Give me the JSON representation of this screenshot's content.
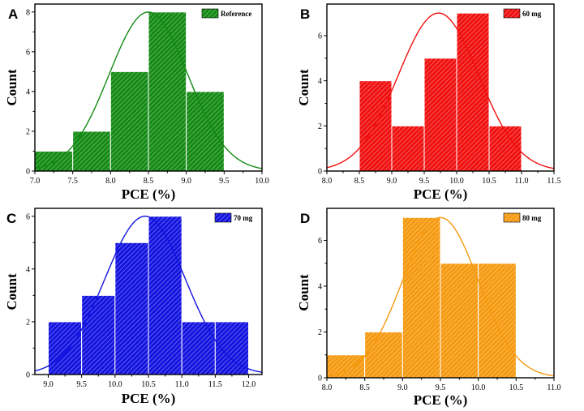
{
  "chart_data": [
    {
      "type": "bar",
      "panel_label": "A",
      "legend": "Reference",
      "color": "#138a13",
      "xlabel": "PCE (%)",
      "ylabel": "Count",
      "xlim": [
        7.0,
        10.0
      ],
      "ylim": [
        0,
        8.4
      ],
      "xticks": [
        "7.0",
        "7.5",
        "8.0",
        "8.5",
        "9.0",
        "9.5",
        "10.0"
      ],
      "yticks": [
        "0",
        "2",
        "4",
        "6",
        "8"
      ],
      "bins": [
        [
          7.0,
          7.5
        ],
        [
          7.5,
          8.0
        ],
        [
          8.0,
          8.5
        ],
        [
          8.5,
          9.0
        ],
        [
          9.0,
          9.5
        ]
      ],
      "values": [
        1,
        2,
        5,
        8,
        4
      ],
      "fit": {
        "mean": 8.5,
        "sd": 0.52,
        "peak": 8.0
      }
    },
    {
      "type": "bar",
      "panel_label": "B",
      "legend": "60 mg",
      "color": "#f01010",
      "xlabel": "PCE (%)",
      "ylabel": "Count",
      "xlim": [
        8.0,
        11.5
      ],
      "ylim": [
        0,
        7.4
      ],
      "xticks": [
        "8.0",
        "8.5",
        "9.0",
        "9.5",
        "10.0",
        "10.5",
        "11.0",
        "11.5"
      ],
      "yticks": [
        "0",
        "2",
        "4",
        "6"
      ],
      "bins": [
        [
          8.5,
          9.0
        ],
        [
          9.0,
          9.5
        ],
        [
          9.5,
          10.0
        ],
        [
          10.0,
          10.5
        ],
        [
          10.5,
          11.0
        ]
      ],
      "values": [
        4,
        2,
        5,
        7,
        2
      ],
      "fit": {
        "mean": 9.72,
        "sd": 0.62,
        "peak": 7.0
      }
    },
    {
      "type": "bar",
      "panel_label": "C",
      "legend": "70 mg",
      "color": "#1414e0",
      "xlabel": "PCE (%)",
      "ylabel": "Count",
      "xlim": [
        8.8,
        12.2
      ],
      "ylim": [
        0,
        6.3
      ],
      "xticks": [
        "9.0",
        "9.5",
        "10.0",
        "10.5",
        "11.0",
        "11.5",
        "12.0"
      ],
      "yticks": [
        "0",
        "2",
        "4",
        "6"
      ],
      "bins": [
        [
          9.0,
          9.5
        ],
        [
          9.5,
          10.0
        ],
        [
          10.0,
          10.5
        ],
        [
          10.5,
          11.0
        ],
        [
          11.0,
          11.5
        ],
        [
          11.5,
          12.0
        ]
      ],
      "values": [
        2,
        3,
        5,
        6,
        2,
        2
      ],
      "fit": {
        "mean": 10.45,
        "sd": 0.6,
        "peak": 6.0
      }
    },
    {
      "type": "bar",
      "panel_label": "D",
      "legend": "80 mg",
      "color": "#f59a10",
      "xlabel": "PCE (%)",
      "ylabel": "Count",
      "xlim": [
        8.0,
        11.0
      ],
      "ylim": [
        0,
        7.4
      ],
      "xticks": [
        "8.0",
        "8.5",
        "9.0",
        "9.5",
        "10.0",
        "10.5",
        "11.0"
      ],
      "yticks": [
        "0",
        "2",
        "4",
        "6"
      ],
      "bins": [
        [
          8.0,
          8.5
        ],
        [
          8.5,
          9.0
        ],
        [
          9.0,
          9.5
        ],
        [
          9.5,
          10.0
        ],
        [
          10.0,
          10.5
        ]
      ],
      "values": [
        1,
        2,
        7,
        5,
        5
      ],
      "fit": {
        "mean": 9.5,
        "sd": 0.5,
        "peak": 7.0
      }
    }
  ]
}
